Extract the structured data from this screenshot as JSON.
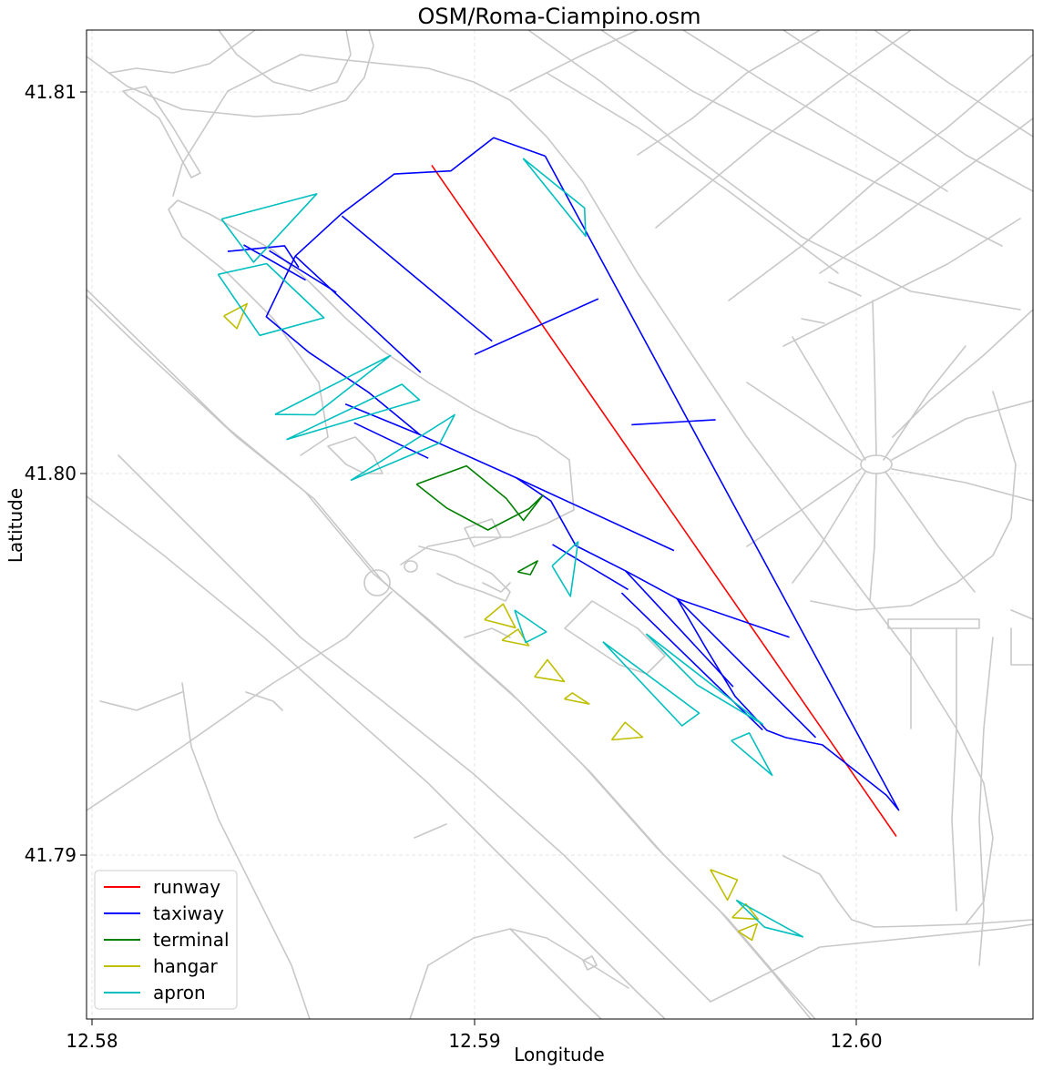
{
  "chart": {
    "title": "OSM/Roma-Ciampino.osm",
    "xlabel": "Longitude",
    "ylabel": "Latitude",
    "x_ticks": [
      "12.58",
      "12.59",
      "12.60"
    ],
    "y_ticks": [
      "41.81",
      "41.80",
      "41.79"
    ]
  },
  "legend": {
    "placement": "lower-left",
    "items": [
      {
        "label": "runway",
        "color": "#ff0000"
      },
      {
        "label": "taxiway",
        "color": "#0000ff"
      },
      {
        "label": "terminal",
        "color": "#008000"
      },
      {
        "label": "hangar",
        "color": "#bfbf00"
      },
      {
        "label": "apron",
        "color": "#00bfbf"
      }
    ]
  },
  "chart_data": {
    "type": "map",
    "title": "OSM/Roma-Ciampino.osm",
    "xlabel": "Longitude",
    "ylabel": "Latitude",
    "xlim": [
      12.5799,
      12.6048
    ],
    "ylim": [
      41.7857,
      41.8117
    ],
    "grid": true,
    "x_ticks": [
      12.58,
      12.59,
      12.6
    ],
    "y_ticks": [
      41.79,
      41.8,
      41.81
    ],
    "background_layer": {
      "name": "roads",
      "color": "#c8c8c8"
    },
    "layers": [
      {
        "name": "runway",
        "color": "#ff0000",
        "paths": [
          [
            [
              12.58889,
              41.80808
            ],
            [
              12.60105,
              41.79049
            ]
          ]
        ]
      },
      {
        "name": "taxiway",
        "color": "#0000ff",
        "paths": [
          [
            [
              12.59186,
              41.80832
            ],
            [
              12.59051,
              41.8088
            ],
            [
              12.58939,
              41.80793
            ],
            [
              12.58791,
              41.80785
            ],
            [
              12.58653,
              41.80681
            ],
            [
              12.58532,
              41.8057
            ],
            [
              12.58456,
              41.80411
            ],
            [
              12.58567,
              41.80318
            ],
            [
              12.58725,
              41.80212
            ],
            [
              12.58858,
              41.80102
            ],
            [
              12.5911,
              41.79989
            ],
            [
              12.59201,
              41.79928
            ],
            [
              12.59266,
              41.79811
            ],
            [
              12.59396,
              41.79745
            ],
            [
              12.59531,
              41.79672
            ],
            [
              12.59605,
              41.79545
            ],
            [
              12.59683,
              41.79416
            ],
            [
              12.59766,
              41.79327
            ],
            [
              12.59815,
              41.79308
            ],
            [
              12.59911,
              41.79289
            ],
            [
              12.60079,
              41.79157
            ],
            [
              12.60111,
              41.79118
            ],
            [
              12.59186,
              41.80832
            ]
          ],
          [
            [
              12.58355,
              41.80582
            ],
            [
              12.58504,
              41.80597
            ],
            [
              12.58541,
              41.8054
            ]
          ],
          [
            [
              12.58397,
              41.80599
            ],
            [
              12.58559,
              41.80507
            ]
          ],
          [
            [
              12.58464,
              41.80584
            ],
            [
              12.58639,
              41.80475
            ]
          ],
          [
            [
              12.58532,
              41.8057
            ],
            [
              12.5886,
              41.80265
            ]
          ],
          [
            [
              12.58654,
              41.80675
            ],
            [
              12.59047,
              41.80347
            ]
          ],
          [
            [
              12.59001,
              41.80312
            ],
            [
              12.59325,
              41.80458
            ]
          ],
          [
            [
              12.58858,
              41.80102
            ],
            [
              12.58663,
              41.80182
            ]
          ],
          [
            [
              12.5888,
              41.8004
            ],
            [
              12.58686,
              41.80133
            ]
          ],
          [
            [
              12.5911,
              41.79989
            ],
            [
              12.59523,
              41.79798
            ]
          ],
          [
            [
              12.59412,
              41.80128
            ],
            [
              12.59632,
              41.80141
            ]
          ],
          [
            [
              12.59205,
              41.79814
            ],
            [
              12.59403,
              41.79696
            ]
          ],
          [
            [
              12.59396,
              41.79745
            ],
            [
              12.59678,
              41.79441
            ]
          ],
          [
            [
              12.59531,
              41.79672
            ],
            [
              12.59894,
              41.79308
            ]
          ],
          [
            [
              12.59386,
              41.79687
            ],
            [
              12.59755,
              41.79328
            ]
          ],
          [
            [
              12.59531,
              41.79672
            ],
            [
              12.59825,
              41.79571
            ]
          ]
        ]
      },
      {
        "name": "terminal",
        "color": "#008000",
        "paths": [
          [
            [
              12.58849,
              41.79972
            ],
            [
              12.5898,
              41.8002
            ],
            [
              12.59084,
              41.79935
            ],
            [
              12.59129,
              41.79877
            ],
            [
              12.5918,
              41.79943
            ],
            [
              12.59144,
              41.79908
            ],
            [
              12.59036,
              41.79852
            ],
            [
              12.58929,
              41.79909
            ],
            [
              12.58849,
              41.79972
            ]
          ],
          [
            [
              12.59114,
              41.79742
            ],
            [
              12.59166,
              41.79771
            ],
            [
              12.59147,
              41.79735
            ],
            [
              12.59114,
              41.79742
            ]
          ]
        ]
      },
      {
        "name": "hangar",
        "color": "#bfbf00",
        "paths": [
          [
            [
              12.58345,
              41.80413
            ],
            [
              12.58406,
              41.80445
            ],
            [
              12.58379,
              41.8038
            ],
            [
              12.58345,
              41.80413
            ]
          ],
          [
            [
              12.59027,
              41.79617
            ],
            [
              12.59076,
              41.79658
            ],
            [
              12.59108,
              41.79596
            ],
            [
              12.59027,
              41.79617
            ]
          ],
          [
            [
              12.59073,
              41.79563
            ],
            [
              12.59115,
              41.79592
            ],
            [
              12.59143,
              41.79549
            ],
            [
              12.59073,
              41.79563
            ]
          ],
          [
            [
              12.59158,
              41.79467
            ],
            [
              12.59192,
              41.79512
            ],
            [
              12.59236,
              41.79455
            ],
            [
              12.59158,
              41.79467
            ]
          ],
          [
            [
              12.59236,
              41.79409
            ],
            [
              12.59257,
              41.79425
            ],
            [
              12.59301,
              41.79396
            ],
            [
              12.59236,
              41.79409
            ]
          ],
          [
            [
              12.5936,
              41.79302
            ],
            [
              12.59395,
              41.79348
            ],
            [
              12.59441,
              41.79309
            ],
            [
              12.5936,
              41.79302
            ]
          ],
          [
            [
              12.59618,
              41.78962
            ],
            [
              12.59689,
              41.78935
            ],
            [
              12.59663,
              41.78882
            ],
            [
              12.59618,
              41.78962
            ]
          ],
          [
            [
              12.59675,
              41.78836
            ],
            [
              12.59711,
              41.78872
            ],
            [
              12.59743,
              41.78832
            ],
            [
              12.59675,
              41.78836
            ]
          ],
          [
            [
              12.59691,
              41.788
            ],
            [
              12.59741,
              41.7882
            ],
            [
              12.59727,
              41.78777
            ],
            [
              12.59691,
              41.788
            ]
          ]
        ]
      },
      {
        "name": "apron",
        "color": "#00bfbf",
        "paths": [
          [
            [
              12.58339,
              41.80667
            ],
            [
              12.58588,
              41.80733
            ],
            [
              12.58423,
              41.80554
            ],
            [
              12.58339,
              41.80667
            ]
          ],
          [
            [
              12.5833,
              41.80522
            ],
            [
              12.58457,
              41.8055
            ],
            [
              12.58607,
              41.80408
            ],
            [
              12.58439,
              41.80362
            ],
            [
              12.5833,
              41.80522
            ]
          ],
          [
            [
              12.58479,
              41.80155
            ],
            [
              12.58781,
              41.80309
            ],
            [
              12.58583,
              41.80154
            ],
            [
              12.58479,
              41.80155
            ]
          ],
          [
            [
              12.58509,
              41.80089
            ],
            [
              12.58811,
              41.80234
            ],
            [
              12.58857,
              41.80193
            ],
            [
              12.58509,
              41.80089
            ]
          ],
          [
            [
              12.58677,
              41.79982
            ],
            [
              12.58949,
              41.80154
            ],
            [
              12.58911,
              41.80081
            ],
            [
              12.58677,
              41.79982
            ]
          ],
          [
            [
              12.59128,
              41.80826
            ],
            [
              12.59289,
              41.80696
            ],
            [
              12.59292,
              41.80622
            ],
            [
              12.59128,
              41.80826
            ]
          ],
          [
            [
              12.59204,
              41.79758
            ],
            [
              12.59272,
              41.79821
            ],
            [
              12.59252,
              41.79678
            ],
            [
              12.59204,
              41.79758
            ]
          ],
          [
            [
              12.59106,
              41.79642
            ],
            [
              12.59189,
              41.79585
            ],
            [
              12.59135,
              41.79557
            ],
            [
              12.59106,
              41.79642
            ]
          ],
          [
            [
              12.59337,
              41.79559
            ],
            [
              12.59544,
              41.79339
            ],
            [
              12.59589,
              41.79372
            ],
            [
              12.59337,
              41.79559
            ]
          ],
          [
            [
              12.5945,
              41.7958
            ],
            [
              12.59583,
              41.79446
            ],
            [
              12.59755,
              41.79343
            ],
            [
              12.5945,
              41.7958
            ]
          ],
          [
            [
              12.59673,
              41.793
            ],
            [
              12.5972,
              41.7932
            ],
            [
              12.5978,
              41.79209
            ],
            [
              12.59673,
              41.793
            ]
          ],
          [
            [
              12.59686,
              41.78882
            ],
            [
              12.5986,
              41.78786
            ],
            [
              12.5976,
              41.78811
            ],
            [
              12.59686,
              41.78882
            ]
          ]
        ]
      }
    ]
  }
}
